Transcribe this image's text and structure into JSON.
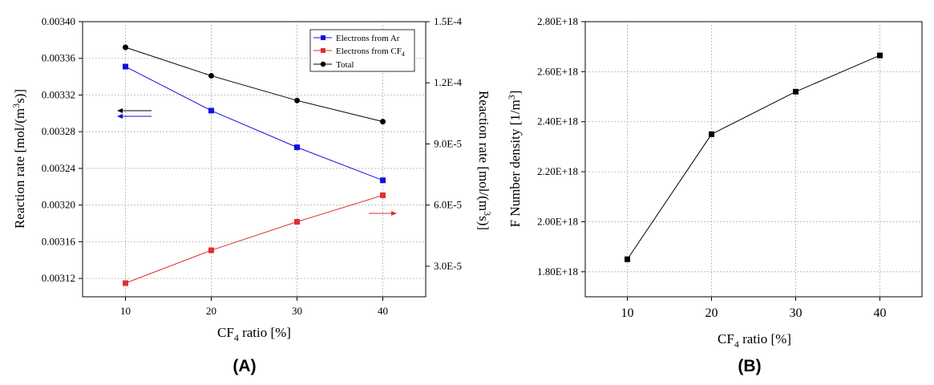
{
  "chart_data": [
    {
      "type": "line",
      "panel_label": "(A)",
      "x": [
        10,
        20,
        30,
        40
      ],
      "x_ticks": [
        "10",
        "20",
        "30",
        "40"
      ],
      "xlabel_main": "CF",
      "xlabel_sub": "4",
      "xlabel_rest": " ratio [%]",
      "xlim": [
        5,
        45
      ],
      "ylabel_left": "Reaction rate [mol/(m",
      "ylabel_left_sup": "3",
      "ylabel_left_rest": "s)]",
      "ylim_left": [
        0.0031,
        0.0034
      ],
      "y_ticks_left": [
        "0.00312",
        "0.00316",
        "0.00320",
        "0.00324",
        "0.00328",
        "0.00332",
        "0.00336",
        "0.00340"
      ],
      "y_tick_values_left": [
        0.00312,
        0.00316,
        0.0032,
        0.00324,
        0.00328,
        0.00332,
        0.00336,
        0.0034
      ],
      "ylabel_right": "Reaction rate [mol/(m",
      "ylabel_right_sup": "3",
      "ylabel_right_rest": "s)]",
      "ylim_right": [
        1.5e-05,
        0.00015
      ],
      "y_ticks_right": [
        "3.0E-5",
        "6.0E-5",
        "9.0E-5",
        "1.2E-4",
        "1.5E-4"
      ],
      "y_tick_values_right": [
        3e-05,
        6e-05,
        9e-05,
        0.00012,
        0.00015
      ],
      "grid": true,
      "legend_placement": "top-right",
      "series": [
        {
          "name": "Electrons from Ar",
          "axis": "left",
          "color": "#1010e0",
          "marker": "square",
          "values": [
            0.003351,
            0.003303,
            0.003263,
            0.003227
          ]
        },
        {
          "name": "Electrons from CF",
          "name_sub": "4",
          "axis": "right",
          "color": "#e03030",
          "marker": "square",
          "values": [
            2.17e-05,
            3.78e-05,
            5.18e-05,
            6.48e-05
          ]
        },
        {
          "name": "Total",
          "axis": "left",
          "color": "#000000",
          "marker": "circle",
          "values": [
            0.003372,
            0.003341,
            0.003314,
            0.003291
          ]
        }
      ]
    },
    {
      "type": "line",
      "panel_label": "(B)",
      "x": [
        10,
        20,
        30,
        40
      ],
      "x_ticks": [
        "10",
        "20",
        "30",
        "40"
      ],
      "xlabel_main": "CF",
      "xlabel_sub": "4",
      "xlabel_rest": " ratio [%]",
      "xlim": [
        5,
        45
      ],
      "ylabel": "F Number density [1/m",
      "ylabel_sup": "3",
      "ylabel_rest": "]",
      "ylim": [
        1.7e+18,
        2.8e+18
      ],
      "y_ticks": [
        "1.80E+18",
        "2.00E+18",
        "2.20E+18",
        "2.40E+18",
        "2.60E+18",
        "2.80E+18"
      ],
      "y_tick_values": [
        1.8e+18,
        2e+18,
        2.2e+18,
        2.4e+18,
        2.6e+18,
        2.8e+18
      ],
      "grid": true,
      "series": [
        {
          "color": "#000000",
          "marker": "square",
          "values": [
            1.85e+18,
            2.35e+18,
            2.52e+18,
            2.665e+18
          ]
        }
      ]
    }
  ]
}
